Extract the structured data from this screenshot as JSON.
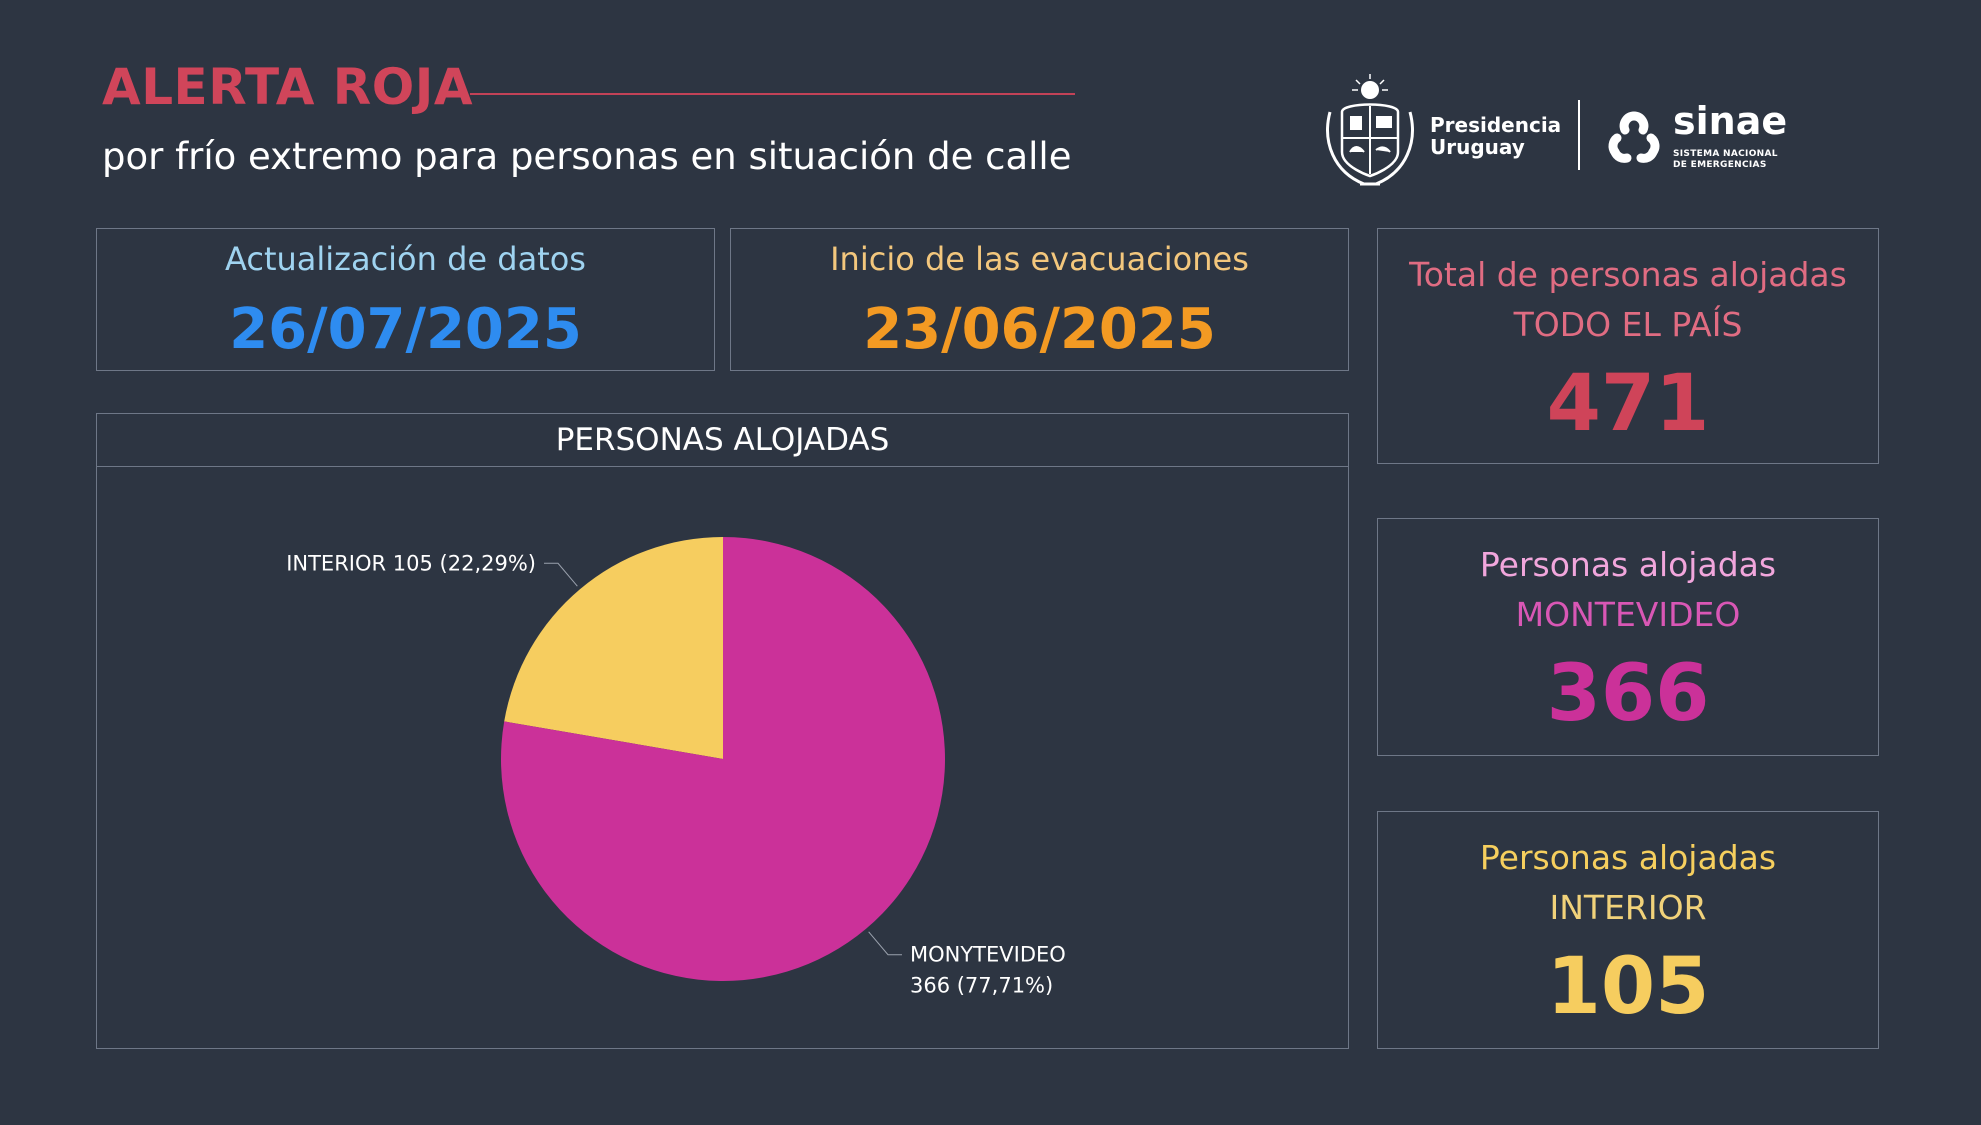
{
  "header": {
    "title": "ALERTA ROJA",
    "subtitle": "por frío extremo para personas en situación de calle"
  },
  "logos": {
    "presidencia_line1": "Presidencia",
    "presidencia_line2": "Uruguay",
    "sinae_name": "sinae",
    "sinae_sub_line1": "SISTEMA NACIONAL",
    "sinae_sub_line2": "DE EMERGENCIAS",
    "seal_icon": "uruguay-coat-of-arms-icon",
    "sinae_icon": "sinae-triangle-icon"
  },
  "update_card": {
    "label": "Actualización de datos",
    "value": "26/07/2025",
    "label_color": "#9fd3f0",
    "value_color": "#2e8cf0"
  },
  "start_card": {
    "label": "Inicio de las evacuaciones",
    "value": "23/06/2025",
    "label_color": "#f3c77d",
    "value_color": "#f39a23"
  },
  "stats": [
    {
      "title": "Total de personas alojadas",
      "region": "TODO EL PAÍS",
      "value": "471",
      "title_color": "#e06c82",
      "region_color": "#e06c82",
      "value_color": "#cf4459"
    },
    {
      "title": "Personas alojadas",
      "region": "MONTEVIDEO",
      "value": "366",
      "title_color": "#f1a6dc",
      "region_color": "#d957b5",
      "value_color": "#cb3199"
    },
    {
      "title": "Personas alojadas",
      "region": "INTERIOR",
      "value": "105",
      "title_color": "#f6cf5e",
      "region_color": "#f1d27a",
      "value_color": "#f6cd5f"
    }
  ],
  "chart_data": {
    "type": "pie",
    "title": "PERSONAS ALOJADAS",
    "slices": [
      {
        "name": "INTERIOR",
        "value": 105,
        "percent_label": "(22,29%)",
        "label_lines": [
          "INTERIOR 105 (22,29%)"
        ],
        "color": "#f6cd5f"
      },
      {
        "name": "MONYTEVIDEO",
        "value": 366,
        "percent_label": "(77,71%)",
        "label_lines": [
          "MONYTEVIDEO",
          "366 (77,71%)"
        ],
        "color": "#cb3199"
      }
    ]
  }
}
